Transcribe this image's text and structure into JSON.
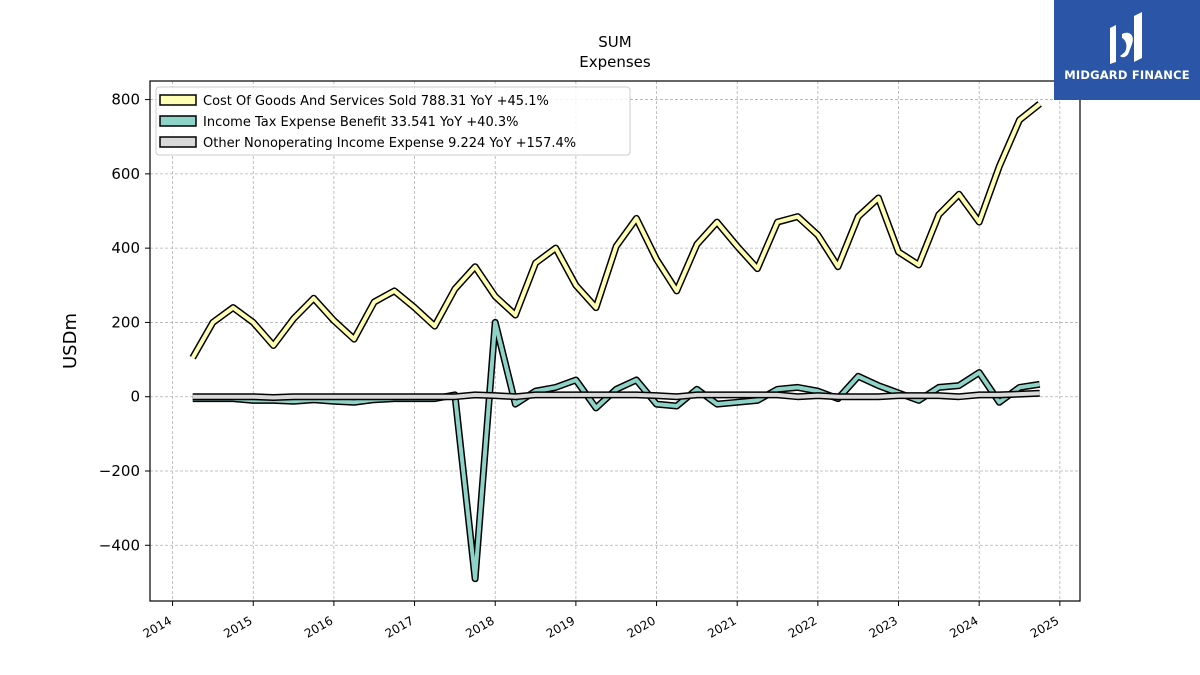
{
  "chart_data": {
    "type": "line",
    "title": "SUM",
    "subtitle": "Expenses",
    "ylabel": "USDm",
    "xlabel": "",
    "xlim": [
      2013.72,
      2025.25
    ],
    "ylim": [
      -550,
      850
    ],
    "x_ticks": [
      "2014",
      "2015",
      "2016",
      "2017",
      "2018",
      "2019",
      "2020",
      "2021",
      "2022",
      "2023",
      "2024",
      "2025"
    ],
    "y_ticks": [
      "800",
      "600",
      "400",
      "200",
      "0",
      "−200",
      "−400"
    ],
    "y_tick_values": [
      800,
      600,
      400,
      200,
      0,
      -200,
      -400
    ],
    "x": [
      2014.25,
      2014.5,
      2014.75,
      2015.0,
      2015.25,
      2015.5,
      2015.75,
      2016.0,
      2016.25,
      2016.5,
      2016.75,
      2017.0,
      2017.25,
      2017.5,
      2017.75,
      2018.0,
      2018.25,
      2018.5,
      2018.75,
      2019.0,
      2019.25,
      2019.5,
      2019.75,
      2020.0,
      2020.25,
      2020.5,
      2020.75,
      2021.0,
      2021.25,
      2021.5,
      2021.75,
      2022.0,
      2022.25,
      2022.5,
      2022.75,
      2023.0,
      2023.25,
      2023.5,
      2023.75,
      2024.0,
      2024.25,
      2024.5,
      2024.75
    ],
    "grid": true,
    "legend_position": "top-left",
    "series": [
      {
        "name": "Cost Of Goods And Services Sold",
        "legend_label": "Cost Of Goods And Services Sold  788.31 YoY +45.1%",
        "color": "#ffffb3",
        "values": [
          105,
          200,
          240,
          200,
          138,
          210,
          265,
          205,
          155,
          255,
          285,
          240,
          190,
          290,
          350,
          270,
          220,
          360,
          400,
          300,
          240,
          405,
          480,
          370,
          285,
          410,
          470,
          405,
          345,
          470,
          485,
          435,
          350,
          485,
          535,
          390,
          355,
          490,
          545,
          470,
          620,
          745,
          788.31
        ]
      },
      {
        "name": "Income Tax Expense Benefit",
        "legend_label": "Income Tax Expense Benefit  33.541 YoY +40.3%",
        "color": "#8dd3c7",
        "values": [
          -5,
          -5,
          -5,
          -10,
          -10,
          -12,
          -8,
          -12,
          -15,
          -8,
          -5,
          -5,
          -5,
          5,
          -490,
          200,
          -20,
          15,
          25,
          45,
          -30,
          20,
          45,
          -20,
          -25,
          20,
          -20,
          -15,
          -10,
          20,
          25,
          15,
          -5,
          55,
          30,
          10,
          -10,
          25,
          30,
          65,
          -15,
          25,
          33.541
        ]
      },
      {
        "name": "Other Nonoperating Income Expense",
        "legend_label": "Other Nonoperating Income Expense  9.224 YoY +157.4%",
        "color": "#d9d9d9",
        "values": [
          0,
          0,
          0,
          0,
          -2,
          0,
          0,
          0,
          0,
          0,
          0,
          0,
          0,
          0,
          5,
          3,
          0,
          5,
          5,
          5,
          5,
          5,
          5,
          3,
          0,
          5,
          5,
          5,
          5,
          5,
          0,
          3,
          0,
          0,
          0,
          3,
          3,
          3,
          0,
          5,
          5,
          7,
          9.224
        ]
      }
    ]
  },
  "logo": {
    "text": "MIDGARD FINANCE",
    "color": "#2b56a8"
  }
}
